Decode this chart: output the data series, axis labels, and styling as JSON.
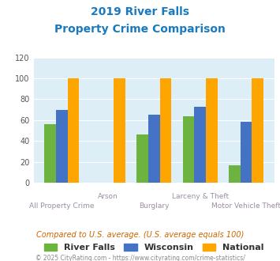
{
  "title_line1": "2019 River Falls",
  "title_line2": "Property Crime Comparison",
  "title_color": "#1a7abf",
  "categories": [
    "All Property Crime",
    "Arson",
    "Burglary",
    "Larceny & Theft",
    "Motor Vehicle Theft"
  ],
  "river_falls": [
    56,
    0,
    46,
    64,
    17
  ],
  "wisconsin": [
    70,
    0,
    65,
    73,
    58
  ],
  "national": [
    100,
    100,
    100,
    100,
    100
  ],
  "color_rf": "#6db33f",
  "color_wi": "#4472c4",
  "color_nat": "#ffa500",
  "ylim": [
    0,
    120
  ],
  "yticks": [
    0,
    20,
    40,
    60,
    80,
    100,
    120
  ],
  "bg_color": "#ddeef6",
  "xlabel_color": "#9b8ea0",
  "legend_labels": [
    "River Falls",
    "Wisconsin",
    "National"
  ],
  "note_text": "Compared to U.S. average. (U.S. average equals 100)",
  "note_color": "#cc6600",
  "footer_text": "© 2025 CityRating.com - https://www.cityrating.com/crime-statistics/",
  "footer_color": "#888888"
}
